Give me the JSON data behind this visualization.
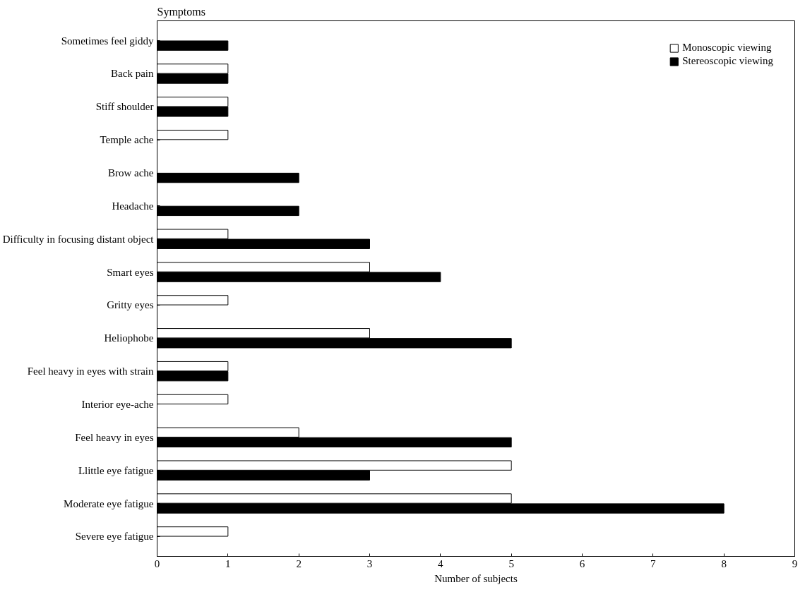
{
  "chart_data": {
    "type": "bar",
    "orientation": "horizontal",
    "ylabel": "Symptoms",
    "xlabel": "Number of subjects",
    "categories": [
      "Sometimes feel giddy",
      "Back pain",
      "Stiff shoulder",
      "Temple ache",
      "Brow ache",
      "Headache",
      "Difficulty in focusing distant object",
      "Smart eyes",
      "Gritty eyes",
      "Heliophobe",
      "Feel heavy in eyes with strain",
      "Interior eye-ache",
      "Feel heavy in eyes",
      "Llittle eye fatigue",
      "Moderate eye fatigue",
      "Severe eye fatigue"
    ],
    "series": [
      {
        "name": "Monoscopic viewing",
        "color": "#ffffff",
        "values": [
          null,
          1,
          1,
          1,
          null,
          null,
          1,
          3,
          1,
          3,
          1,
          1,
          2,
          5,
          5,
          1
        ]
      },
      {
        "name": "Stereoscopic viewing",
        "color": "#000000",
        "values": [
          1,
          1,
          1,
          null,
          2,
          2,
          3,
          4,
          null,
          5,
          1,
          null,
          5,
          3,
          8,
          null
        ]
      }
    ],
    "xlim": [
      0,
      9
    ],
    "xticks": [
      0,
      1,
      2,
      3,
      4,
      5,
      6,
      7,
      8,
      9
    ],
    "grid": false,
    "legend": "top right"
  }
}
